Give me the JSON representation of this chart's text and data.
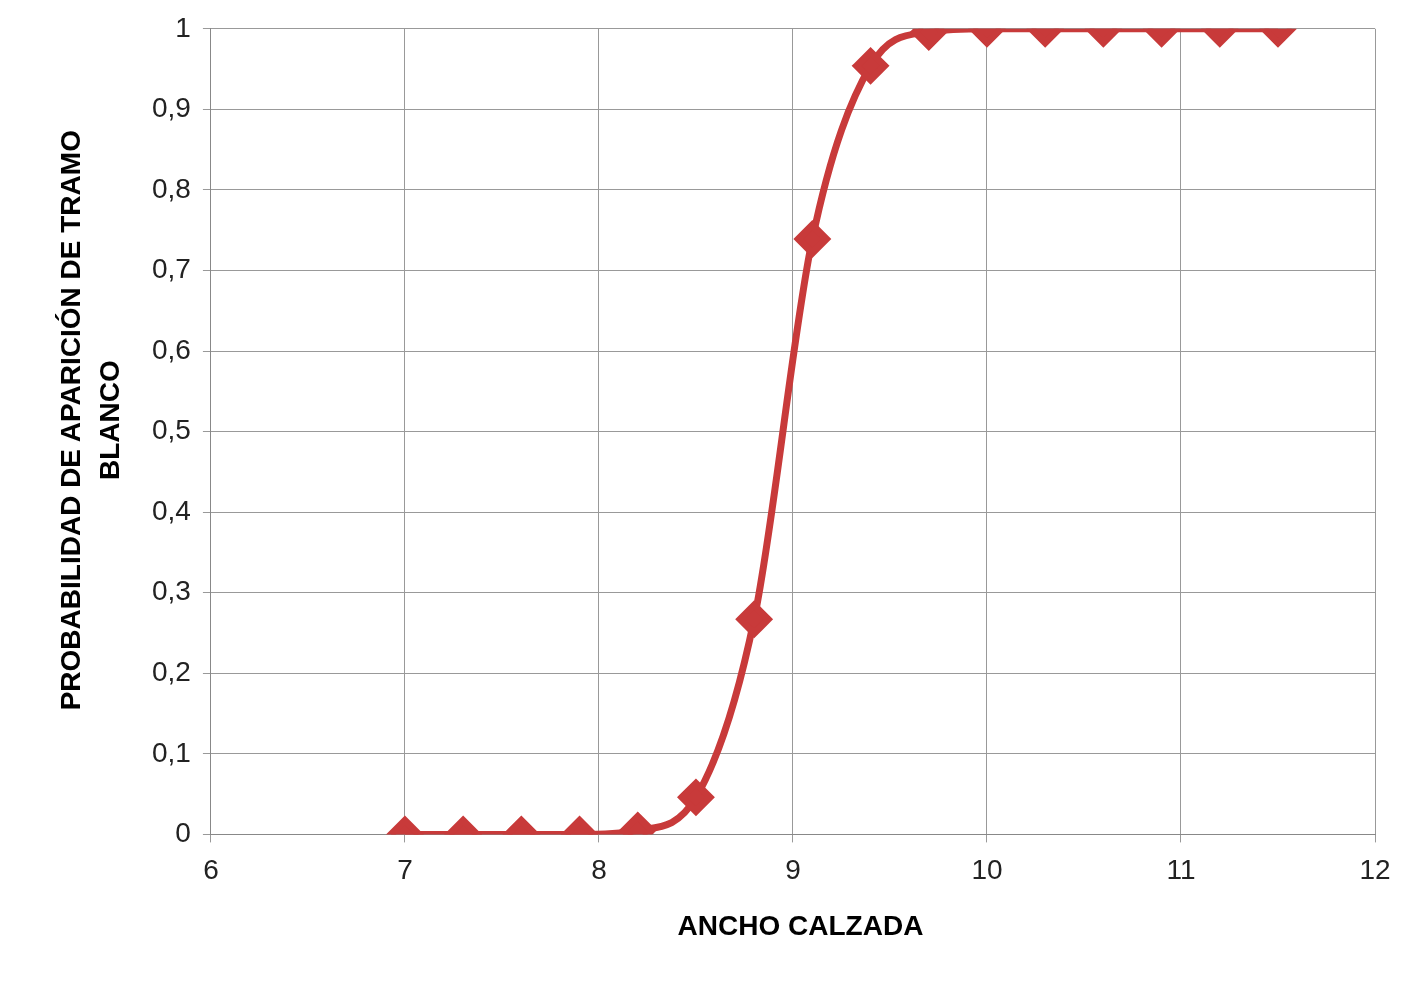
{
  "chart_data": {
    "type": "line",
    "xlabel": "ANCHO CALZADA",
    "ylabel": "PROBABILIDAD DE APARICIÓN DE TRAMO BLANCO",
    "x": [
      7,
      7.3,
      7.6,
      7.9,
      8.2,
      8.5,
      8.8,
      9.1,
      9.4,
      9.7,
      10,
      10.3,
      10.6,
      10.9,
      11.2,
      11.5
    ],
    "series": [
      {
        "color": "#c83a3a",
        "values": [
          0,
          0,
          0,
          0,
          0.005,
          0.046,
          0.267,
          0.739,
          0.954,
          0.996,
          1,
          1,
          1,
          1,
          1,
          1
        ]
      }
    ],
    "xlim": [
      6,
      12
    ],
    "xticks": [
      6,
      7,
      8,
      9,
      10,
      11,
      12
    ],
    "ylim": [
      0,
      1
    ],
    "yticks": [
      0,
      {
        "value": 0.1,
        "label": "0,1"
      },
      {
        "value": 0.2,
        "label": "0,2"
      },
      {
        "value": 0.3,
        "label": "0,3"
      },
      {
        "value": 0.4,
        "label": "0,4"
      },
      {
        "value": 0.5,
        "label": "0,5"
      },
      {
        "value": 0.6,
        "label": "0,6"
      },
      {
        "value": 0.7,
        "label": "0,7"
      },
      {
        "value": 0.8,
        "label": "0,8"
      },
      {
        "value": 0.9,
        "label": "0,9"
      },
      1
    ],
    "grid": true,
    "marker": "diamond",
    "line_style": "solid",
    "legend": false
  }
}
